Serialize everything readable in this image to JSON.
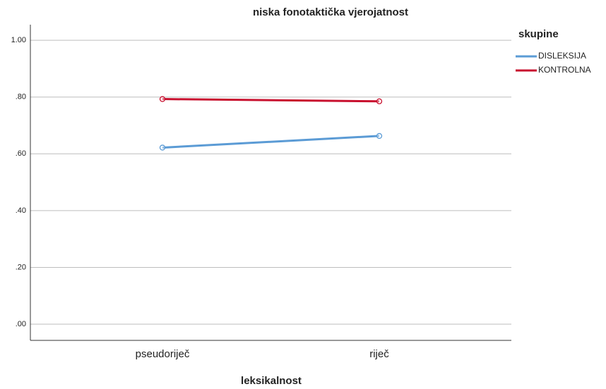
{
  "chart_data": {
    "type": "line",
    "title": "niska fonotaktička vjerojatnost",
    "x_label": "leksikalnost",
    "legend_title": "skupine",
    "categories": [
      "pseudoriječ",
      "riječ"
    ],
    "series": [
      {
        "name": "DISLEKSIJA",
        "color": "#5b9bd5",
        "values": [
          0.622,
          0.663
        ]
      },
      {
        "name": "KONTROLNA",
        "color": "#c8102e",
        "values": [
          0.793,
          0.785
        ]
      }
    ],
    "ylim": [
      -0.057,
      1.055
    ],
    "yticks": [
      {
        "value": 0,
        "label": ".00"
      },
      {
        "value": 0.2,
        "label": ".20"
      },
      {
        "value": 0.4,
        "label": ".40"
      },
      {
        "value": 0.6,
        "label": ".60"
      },
      {
        "value": 0.8,
        "label": ".80"
      },
      {
        "value": 1,
        "label": "1.00"
      }
    ],
    "grid": true,
    "legend_position": "right"
  }
}
